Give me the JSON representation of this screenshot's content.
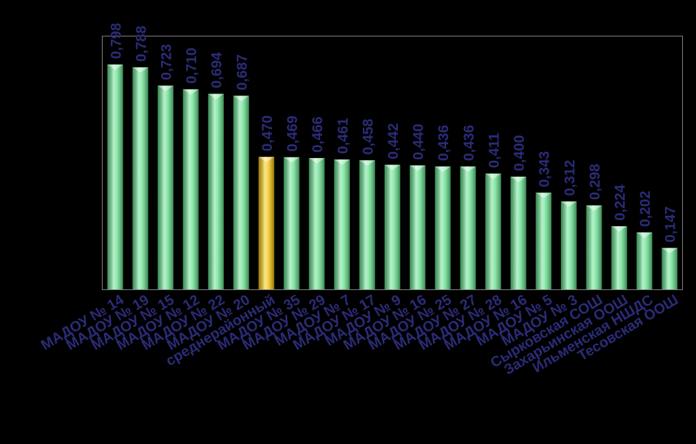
{
  "chart_data": {
    "type": "bar",
    "categories": [
      "МАДОУ № 14",
      "МАДОУ № 19",
      "МАДОУ № 15",
      "МАДОУ № 12",
      "МАДОУ № 22",
      "МАДОУ № 20",
      "среднерайонный",
      "МАДОУ № 35",
      "МАДОУ № 29",
      "МАДОУ № 7",
      "МАДОУ № 17",
      "МАДОУ № 9",
      "МАДОУ № 16",
      "МАДОУ № 25",
      "МАДОУ № 27",
      "МАДОУ № 28",
      "МАДОУ № 16",
      "МАДОУ № 5",
      "МАДОУ № 3",
      "Сырковская СОШ",
      "Захарьинская ООШ",
      "Ильменская НШДС",
      "Тесовская ООШ"
    ],
    "values": [
      0.798,
      0.788,
      0.723,
      0.71,
      0.694,
      0.687,
      0.47,
      0.469,
      0.466,
      0.461,
      0.458,
      0.442,
      0.44,
      0.436,
      0.436,
      0.411,
      0.4,
      0.343,
      0.312,
      0.298,
      0.224,
      0.202,
      0.147
    ],
    "value_labels": [
      "0,798",
      "0,788",
      "0,723",
      "0,710",
      "0,694",
      "0,687",
      "0,470",
      "0,469",
      "0,466",
      "0,461",
      "0,458",
      "0,442",
      "0,440",
      "0,436",
      "0,436",
      "0,411",
      "0,400",
      "0,343",
      "0,312",
      "0,298",
      "0,224",
      "0,202",
      "0,147"
    ],
    "colors": [
      "#5fe08a",
      "#5fe08a",
      "#5fe08a",
      "#5fe08a",
      "#5fe08a",
      "#5fe08a",
      "#f5c400",
      "#5fe08a",
      "#5fe08a",
      "#5fe08a",
      "#5fe08a",
      "#5fe08a",
      "#5fe08a",
      "#5fe08a",
      "#5fe08a",
      "#5fe08a",
      "#5fe08a",
      "#5fe08a",
      "#5fe08a",
      "#5fe08a",
      "#5fe08a",
      "#5fe08a",
      "#5fe08a"
    ],
    "ylim": [
      0,
      0.9
    ]
  }
}
